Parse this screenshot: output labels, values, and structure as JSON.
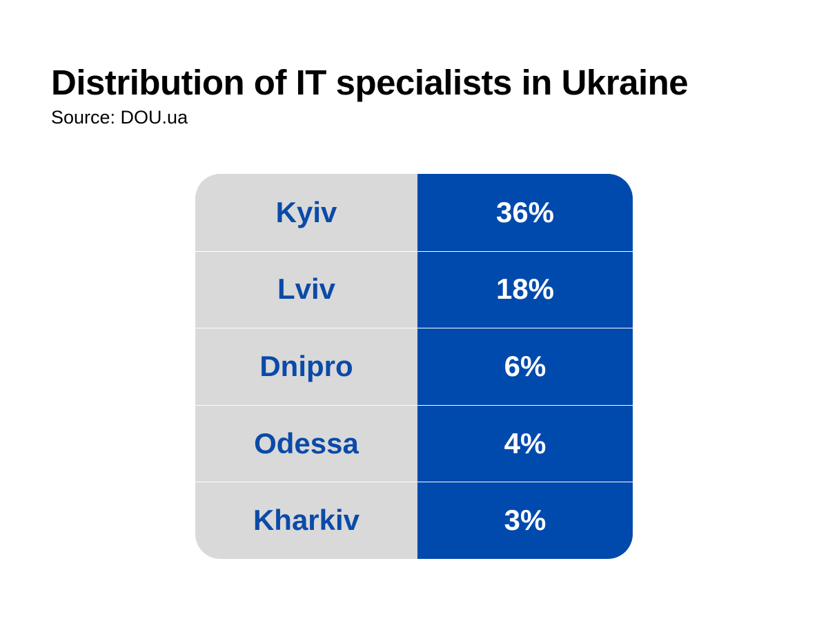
{
  "title": "Distribution of IT specialists in Ukraine",
  "subtitle": "Source: DOU.ua",
  "colors": {
    "label_cell_bg": "#d9d9d9",
    "label_text": "#0b4aa8",
    "value_cell_bg": "#004aad",
    "value_text": "#ffffff",
    "divider": "#ffffff"
  },
  "chart_data": {
    "type": "table",
    "title": "Distribution of IT specialists in Ukraine",
    "subtitle": "Source: DOU.ua",
    "rows": [
      {
        "city": "Kyiv",
        "share": "36%",
        "value": 36
      },
      {
        "city": "Lviv",
        "share": "18%",
        "value": 18
      },
      {
        "city": "Dnipro",
        "share": "6%",
        "value": 6
      },
      {
        "city": "Odessa",
        "share": "4%",
        "value": 4
      },
      {
        "city": "Kharkiv",
        "share": "3%",
        "value": 3
      }
    ]
  }
}
